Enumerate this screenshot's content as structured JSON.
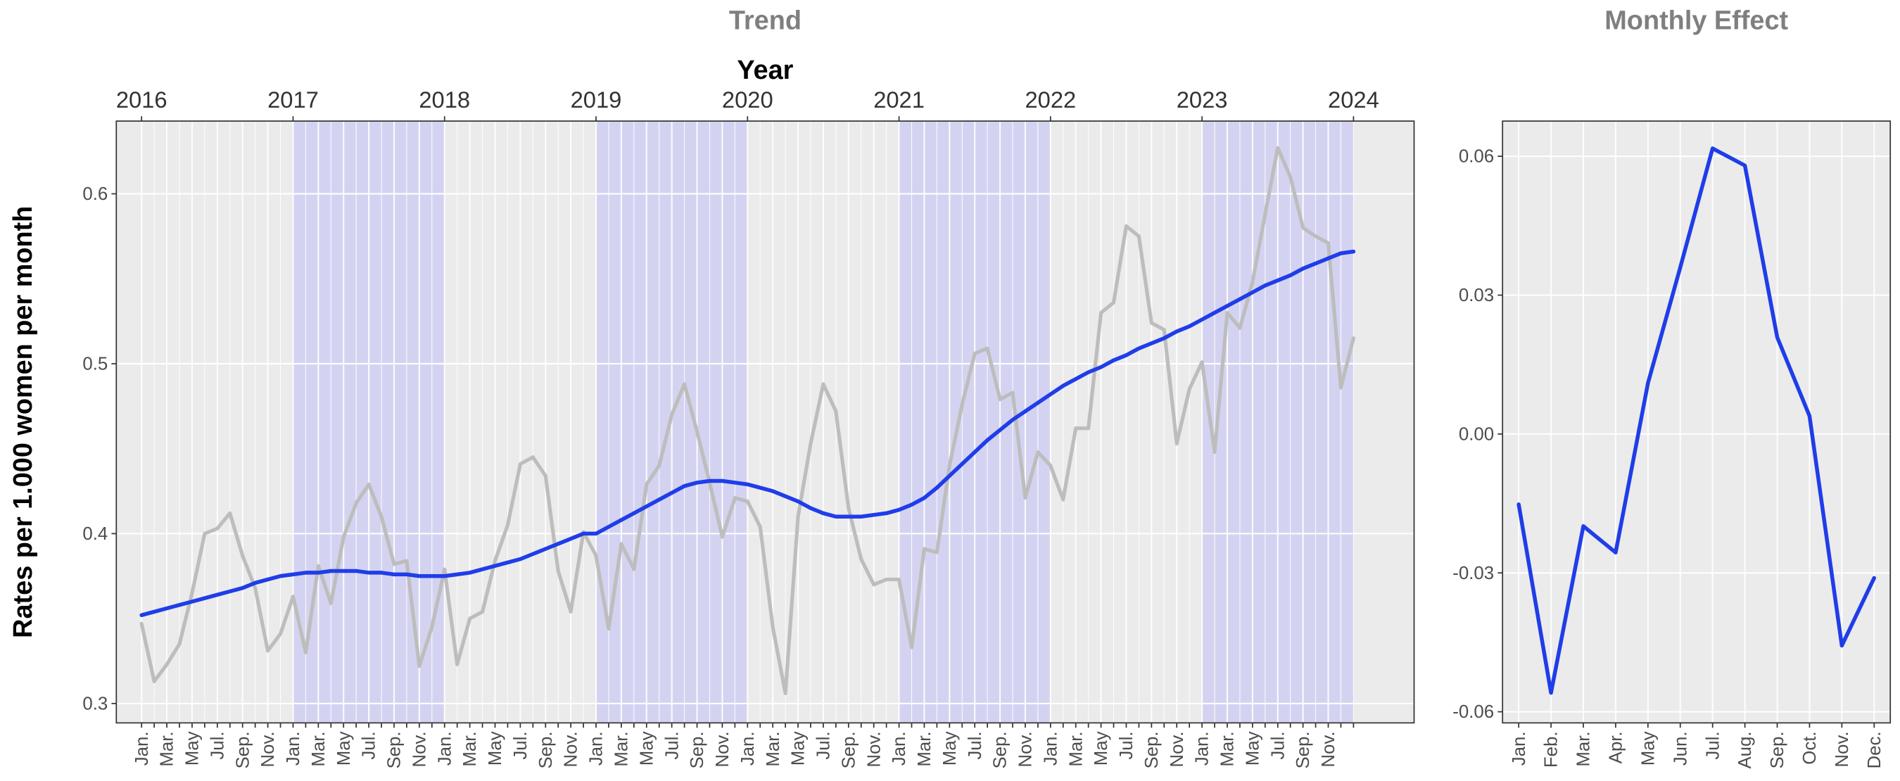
{
  "chart_data": [
    {
      "type": "line",
      "title": "Trend",
      "x2label": "Year",
      "ylabel": "Rates per 1.000 women per month",
      "categories": [
        "Jan.",
        null,
        "Mar.",
        null,
        "May",
        null,
        "Jul.",
        null,
        "Sep.",
        null,
        "Nov.",
        null,
        "Jan.",
        null,
        "Mar.",
        null,
        "May",
        null,
        "Jul.",
        null,
        "Sep.",
        null,
        "Nov.",
        null,
        "Jan.",
        null,
        "Mar.",
        null,
        "May",
        null,
        "Jul.",
        null,
        "Sep.",
        null,
        "Nov.",
        null,
        "Jan.",
        null,
        "Mar.",
        null,
        "May",
        null,
        "Jul.",
        null,
        "Sep.",
        null,
        "Nov.",
        null,
        "Jan.",
        null,
        "Mar.",
        null,
        "May",
        null,
        "Jul.",
        null,
        "Sep.",
        null,
        "Nov.",
        null,
        "Jan.",
        null,
        "Mar.",
        null,
        "May",
        null,
        "Jul.",
        null,
        "Sep.",
        null,
        "Nov.",
        null,
        "Jan.",
        null,
        "Mar.",
        null,
        "May",
        null,
        "Jul.",
        null,
        "Sep.",
        null,
        "Nov.",
        null,
        "Jan.",
        null,
        "Mar.",
        null,
        "May",
        null,
        "Jul.",
        null,
        "Sep.",
        null,
        "Nov.",
        null,
        null
      ],
      "xlim": [
        -2,
        100.8
      ],
      "x2ticks": [
        {
          "value": 0,
          "label": "2016"
        },
        {
          "value": 12,
          "label": "2017"
        },
        {
          "value": 24,
          "label": "2018"
        },
        {
          "value": 36,
          "label": "2019"
        },
        {
          "value": 48,
          "label": "2020"
        },
        {
          "value": 60,
          "label": "2021"
        },
        {
          "value": 72,
          "label": "2022"
        },
        {
          "value": 84,
          "label": "2023"
        },
        {
          "value": 96,
          "label": "2024"
        }
      ],
      "shaded": [
        [
          12,
          24
        ],
        [
          36,
          48
        ],
        [
          60,
          72
        ],
        [
          84,
          96
        ]
      ],
      "shade_color": "#d3d3f1",
      "ylim": [
        0.2886,
        0.6428
      ],
      "yticks": [
        0.3,
        0.4,
        0.5,
        0.6
      ],
      "grid": true,
      "series": [
        {
          "color": "#bdbdbd",
          "values": [
            0.347,
            0.313,
            0.323,
            0.335,
            0.365,
            0.4,
            0.403,
            0.412,
            0.387,
            0.368,
            0.331,
            0.341,
            0.363,
            0.33,
            0.381,
            0.359,
            0.398,
            0.418,
            0.429,
            0.41,
            0.382,
            0.384,
            0.322,
            0.345,
            0.379,
            0.323,
            0.35,
            0.354,
            0.384,
            0.405,
            0.441,
            0.445,
            0.434,
            0.378,
            0.354,
            0.401,
            0.387,
            0.344,
            0.394,
            0.379,
            0.429,
            0.44,
            0.47,
            0.488,
            0.46,
            0.43,
            0.398,
            0.421,
            0.419,
            0.404,
            0.345,
            0.306,
            0.41,
            0.453,
            0.488,
            0.472,
            0.415,
            0.385,
            0.37,
            0.373,
            0.373,
            0.333,
            0.391,
            0.389,
            0.44,
            0.476,
            0.506,
            0.509,
            0.479,
            0.483,
            0.421,
            0.448,
            0.44,
            0.42,
            0.462,
            0.462,
            0.53,
            0.536,
            0.581,
            0.575,
            0.524,
            0.52,
            0.453,
            0.485,
            0.501,
            0.448,
            0.53,
            0.521,
            0.548,
            0.588,
            0.627,
            0.61,
            0.58,
            0.575,
            0.571,
            0.486,
            0.515
          ]
        },
        {
          "color": "#1f3de8",
          "values": [
            0.352,
            0.354,
            0.356,
            0.358,
            0.36,
            0.362,
            0.364,
            0.366,
            0.368,
            0.371,
            0.373,
            0.375,
            0.376,
            0.377,
            0.377,
            0.378,
            0.378,
            0.378,
            0.377,
            0.377,
            0.376,
            0.376,
            0.375,
            0.375,
            0.375,
            0.376,
            0.377,
            0.379,
            0.381,
            0.383,
            0.385,
            0.388,
            0.391,
            0.394,
            0.397,
            0.4,
            0.4,
            0.404,
            0.408,
            0.412,
            0.416,
            0.42,
            0.424,
            0.428,
            0.43,
            0.431,
            0.431,
            0.43,
            0.429,
            0.427,
            0.425,
            0.422,
            0.419,
            0.415,
            0.412,
            0.41,
            0.41,
            0.41,
            0.411,
            0.412,
            0.414,
            0.417,
            0.421,
            0.427,
            0.434,
            0.441,
            0.448,
            0.455,
            0.461,
            0.467,
            0.472,
            0.477,
            0.482,
            0.487,
            0.491,
            0.495,
            0.498,
            0.502,
            0.505,
            0.509,
            0.512,
            0.515,
            0.519,
            0.522,
            0.526,
            0.53,
            0.534,
            0.538,
            0.542,
            0.546,
            0.549,
            0.552,
            0.556,
            0.559,
            0.562,
            0.565,
            0.566
          ]
        }
      ]
    },
    {
      "type": "line",
      "title": "Monthly Effect",
      "categories": [
        "Jan.",
        "Feb.",
        "Mar.",
        "Apr.",
        "May",
        "Jun.",
        "Jul.",
        "Aug.",
        "Sep.",
        "Oct.",
        "Nov.",
        "Dec."
      ],
      "ylim": [
        -0.0624,
        0.0676
      ],
      "yticks": [
        -0.06,
        -0.03,
        {
          "value": 0,
          "label": "0.00"
        },
        0.03,
        0.06
      ],
      "grid": true,
      "series": [
        {
          "color": "#1f3de8",
          "values": [
            -0.0152,
            -0.0559,
            -0.0199,
            -0.0256,
            0.011,
            0.036,
            0.0617,
            0.058,
            0.0209,
            0.0039,
            -0.0457,
            -0.0311
          ]
        }
      ]
    }
  ]
}
